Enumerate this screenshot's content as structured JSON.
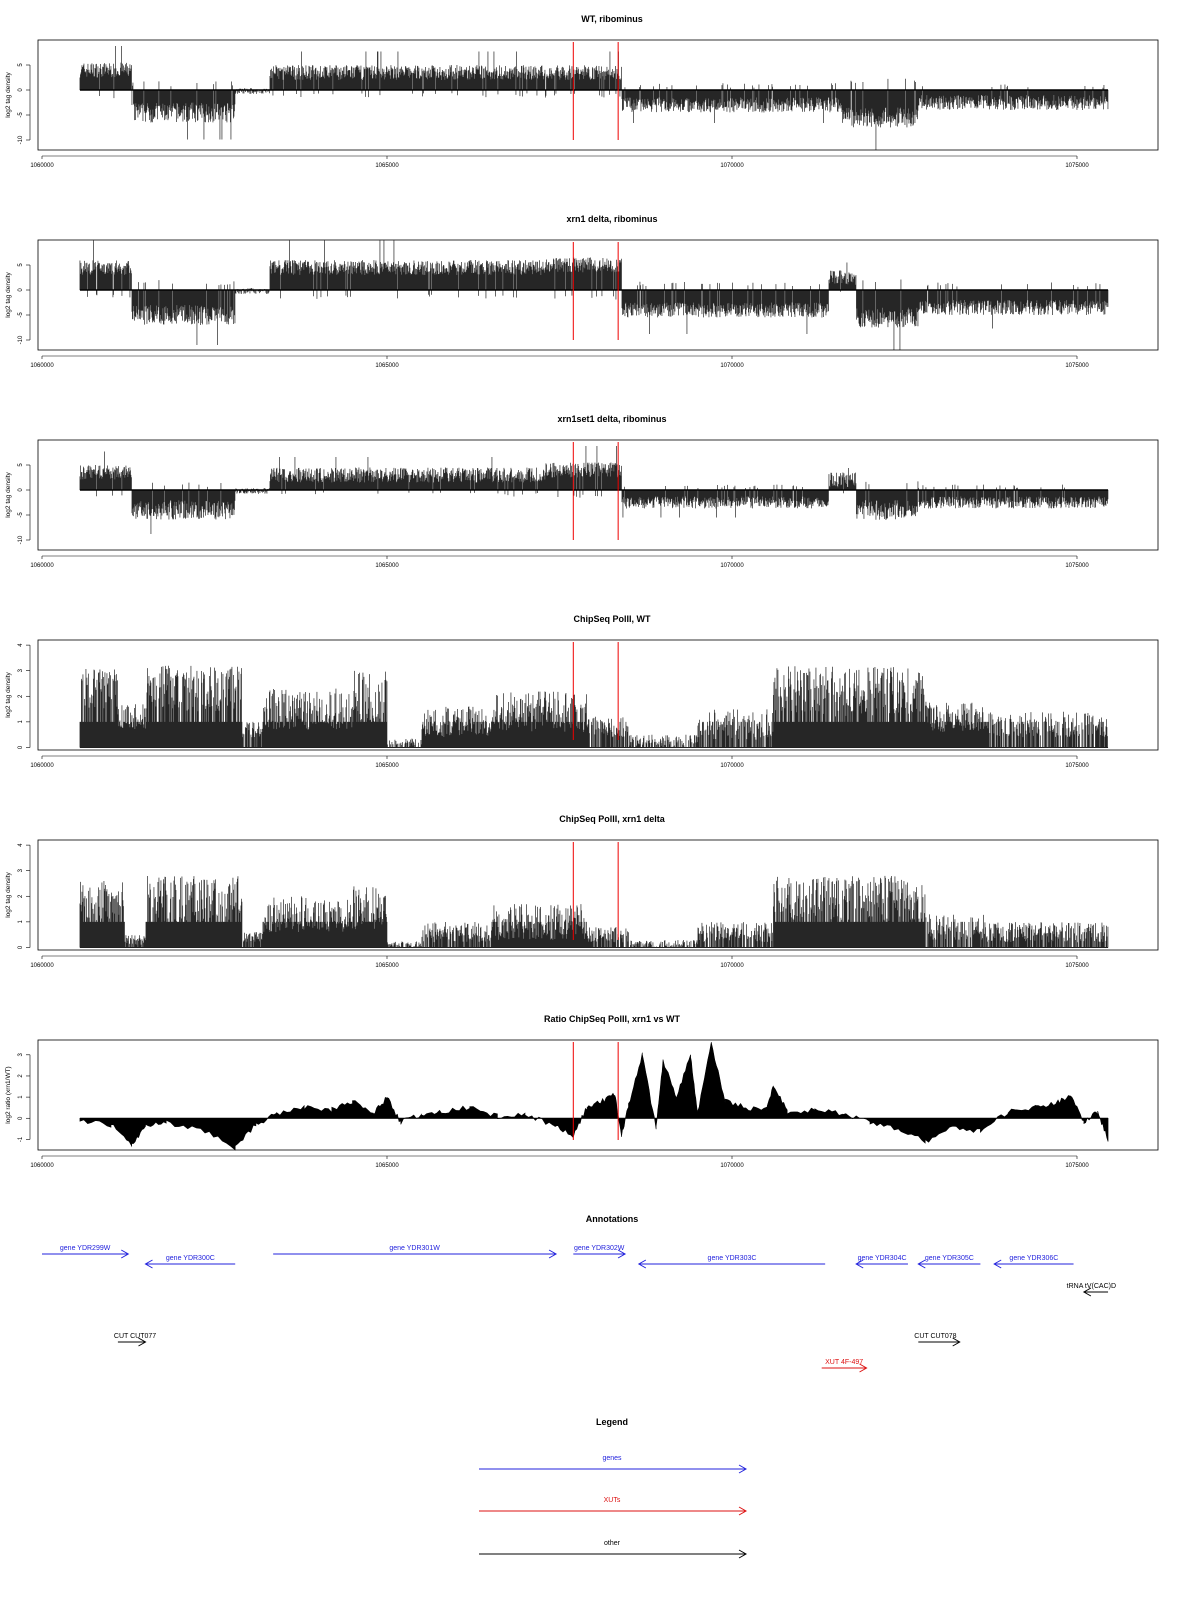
{
  "palette": {
    "gene": "#2222dd",
    "xut": "#dd1111",
    "other": "#000000",
    "marker": "#ee0000",
    "signal": "#000000"
  },
  "xaxis": {
    "range": [
      1060000,
      1075500
    ],
    "ticks": [
      1060000,
      1065000,
      1070000,
      1075000
    ],
    "tick_labels": [
      "1060000",
      "1065000",
      "1070000",
      "1075000"
    ]
  },
  "markers": [
    1067700,
    1068350
  ],
  "chart_data": [
    {
      "id": "wt-ribominus",
      "type": "bar",
      "title": "WT, ribominus",
      "ylabel": "log2 tag density",
      "ylim": [
        -12,
        10
      ],
      "yticks": [
        -10,
        -5,
        0,
        5
      ],
      "ytick_labels": [
        "-10",
        "-5",
        "0",
        "5"
      ],
      "signal_range": [
        1060550,
        1075450
      ],
      "segments": [
        {
          "from": 1060550,
          "to": 1061300,
          "level": 4,
          "amp": 1.5
        },
        {
          "from": 1061300,
          "to": 1062800,
          "level": -4.5,
          "amp": 2
        },
        {
          "from": 1062800,
          "to": 1063300,
          "level": -0.2,
          "amp": 0.6
        },
        {
          "from": 1063300,
          "to": 1067300,
          "level": 3.5,
          "amp": 1.5
        },
        {
          "from": 1067300,
          "to": 1068400,
          "level": 3.5,
          "amp": 1.5
        },
        {
          "from": 1068400,
          "to": 1071600,
          "level": -3,
          "amp": 1.5
        },
        {
          "from": 1071600,
          "to": 1072700,
          "level": -5.5,
          "amp": 2
        },
        {
          "from": 1072700,
          "to": 1075450,
          "level": -2.5,
          "amp": 1.5
        }
      ]
    },
    {
      "id": "xrn1-ribominus",
      "type": "bar",
      "title": "xrn1 delta, ribominus",
      "ylabel": "log2 tag density",
      "ylim": [
        -12,
        10
      ],
      "yticks": [
        -10,
        -5,
        0,
        5
      ],
      "ytick_labels": [
        "-10",
        "-5",
        "0",
        "5"
      ],
      "signal_range": [
        1060550,
        1075450
      ],
      "segments": [
        {
          "from": 1060550,
          "to": 1061300,
          "level": 4.5,
          "amp": 1.5
        },
        {
          "from": 1061300,
          "to": 1062800,
          "level": -5,
          "amp": 2
        },
        {
          "from": 1062800,
          "to": 1063300,
          "level": -0.2,
          "amp": 0.6
        },
        {
          "from": 1063300,
          "to": 1067300,
          "level": 4.5,
          "amp": 1.5
        },
        {
          "from": 1067300,
          "to": 1068400,
          "level": 5,
          "amp": 1.5
        },
        {
          "from": 1068400,
          "to": 1071400,
          "level": -4,
          "amp": 1.5
        },
        {
          "from": 1071400,
          "to": 1071800,
          "level": 2.5,
          "amp": 1.5
        },
        {
          "from": 1071800,
          "to": 1072700,
          "level": -5.5,
          "amp": 2
        },
        {
          "from": 1072700,
          "to": 1075450,
          "level": -3.5,
          "amp": 1.5
        }
      ]
    },
    {
      "id": "xrn1set1-ribominus",
      "type": "bar",
      "title": "xrn1set1 delta, ribominus",
      "ylabel": "log2 tag density",
      "ylim": [
        -12,
        10
      ],
      "yticks": [
        -10,
        -5,
        0,
        5
      ],
      "ytick_labels": [
        "-10",
        "-5",
        "0",
        "5"
      ],
      "signal_range": [
        1060550,
        1075450
      ],
      "segments": [
        {
          "from": 1060550,
          "to": 1061300,
          "level": 3.5,
          "amp": 1.5
        },
        {
          "from": 1061300,
          "to": 1062800,
          "level": -4,
          "amp": 2
        },
        {
          "from": 1062800,
          "to": 1063300,
          "level": -0.2,
          "amp": 0.6
        },
        {
          "from": 1063300,
          "to": 1067300,
          "level": 3,
          "amp": 1.5
        },
        {
          "from": 1067300,
          "to": 1068400,
          "level": 4,
          "amp": 1.5
        },
        {
          "from": 1068400,
          "to": 1071400,
          "level": -2.5,
          "amp": 1.2
        },
        {
          "from": 1071400,
          "to": 1071800,
          "level": 2,
          "amp": 1.5
        },
        {
          "from": 1071800,
          "to": 1072700,
          "level": -4,
          "amp": 2
        },
        {
          "from": 1072700,
          "to": 1075450,
          "level": -2.5,
          "amp": 1.2
        }
      ]
    },
    {
      "id": "chipseq-wt",
      "type": "bar",
      "title": "ChipSeq PolII, WT",
      "ylabel": "log2 tag density",
      "ylim": [
        -0.1,
        4.2
      ],
      "yticks": [
        0,
        1,
        2,
        3,
        4
      ],
      "ytick_labels": [
        "0",
        "1",
        "2",
        "3",
        "4"
      ],
      "signal_range": [
        1060550,
        1075450
      ],
      "segments": [
        {
          "from": 1060550,
          "to": 1061100,
          "level": 2.3,
          "amp": 0.8
        },
        {
          "from": 1061100,
          "to": 1061500,
          "level": 1.2,
          "amp": 0.5
        },
        {
          "from": 1061500,
          "to": 1062900,
          "level": 2.3,
          "amp": 0.9
        },
        {
          "from": 1062900,
          "to": 1063200,
          "level": 0.7,
          "amp": 0.3
        },
        {
          "from": 1063200,
          "to": 1064500,
          "level": 1.5,
          "amp": 0.8
        },
        {
          "from": 1064500,
          "to": 1065000,
          "level": 2,
          "amp": 1
        },
        {
          "from": 1065000,
          "to": 1065500,
          "level": 0.15,
          "amp": 0.2
        },
        {
          "from": 1065500,
          "to": 1066500,
          "level": 1,
          "amp": 0.6
        },
        {
          "from": 1066500,
          "to": 1067900,
          "level": 1.4,
          "amp": 0.8
        },
        {
          "from": 1067900,
          "to": 1068500,
          "level": 0.8,
          "amp": 0.4
        },
        {
          "from": 1068500,
          "to": 1069500,
          "level": 0.2,
          "amp": 0.3
        },
        {
          "from": 1069500,
          "to": 1070600,
          "level": 0.9,
          "amp": 0.6
        },
        {
          "from": 1070600,
          "to": 1072800,
          "level": 2.2,
          "amp": 1
        },
        {
          "from": 1072800,
          "to": 1073700,
          "level": 1.2,
          "amp": 0.6
        },
        {
          "from": 1073700,
          "to": 1075450,
          "level": 0.9,
          "amp": 0.5
        }
      ]
    },
    {
      "id": "chipseq-xrn1",
      "type": "bar",
      "title": "ChipSeq PolII, xrn1 delta",
      "ylabel": "log2 tag density",
      "ylim": [
        -0.1,
        4.2
      ],
      "yticks": [
        0,
        1,
        2,
        3,
        4
      ],
      "ytick_labels": [
        "0",
        "1",
        "2",
        "3",
        "4"
      ],
      "signal_range": [
        1060550,
        1075450
      ],
      "segments": [
        {
          "from": 1060550,
          "to": 1061200,
          "level": 1.8,
          "amp": 0.8
        },
        {
          "from": 1061200,
          "to": 1061500,
          "level": 0.3,
          "amp": 0.2
        },
        {
          "from": 1061500,
          "to": 1062900,
          "level": 1.9,
          "amp": 0.9
        },
        {
          "from": 1062900,
          "to": 1063200,
          "level": 0.4,
          "amp": 0.2
        },
        {
          "from": 1063200,
          "to": 1064500,
          "level": 1.3,
          "amp": 0.7
        },
        {
          "from": 1064500,
          "to": 1065000,
          "level": 1.5,
          "amp": 0.9
        },
        {
          "from": 1065000,
          "to": 1065500,
          "level": 0.1,
          "amp": 0.15
        },
        {
          "from": 1065500,
          "to": 1066500,
          "level": 0.6,
          "amp": 0.4
        },
        {
          "from": 1066500,
          "to": 1067900,
          "level": 1,
          "amp": 0.7
        },
        {
          "from": 1067900,
          "to": 1068500,
          "level": 0.5,
          "amp": 0.3
        },
        {
          "from": 1068500,
          "to": 1069500,
          "level": 0.1,
          "amp": 0.2
        },
        {
          "from": 1069500,
          "to": 1070600,
          "level": 0.6,
          "amp": 0.4
        },
        {
          "from": 1070600,
          "to": 1072800,
          "level": 1.9,
          "amp": 0.9
        },
        {
          "from": 1072800,
          "to": 1073700,
          "level": 0.8,
          "amp": 0.5
        },
        {
          "from": 1073700,
          "to": 1075450,
          "level": 0.6,
          "amp": 0.4
        }
      ]
    },
    {
      "id": "ratio-chipseq",
      "type": "area",
      "title": "Ratio ChipSeq PolII, xrn1 vs WT",
      "ylabel": "log2 ratio (xrn1/WT)",
      "ylim": [
        -1.5,
        3.7
      ],
      "yticks": [
        -1,
        0,
        1,
        2,
        3
      ],
      "ytick_labels": [
        "-1",
        "0",
        "1",
        "2",
        "3"
      ],
      "signal_range": [
        1060550,
        1075450
      ],
      "x": [
        1060550,
        1061000,
        1061300,
        1061500,
        1061800,
        1062300,
        1062800,
        1063100,
        1063400,
        1063800,
        1064200,
        1064500,
        1064800,
        1065000,
        1065200,
        1065500,
        1065800,
        1066200,
        1066600,
        1067000,
        1067400,
        1067700,
        1067900,
        1068100,
        1068300,
        1068400,
        1068500,
        1068700,
        1068900,
        1069000,
        1069200,
        1069400,
        1069500,
        1069700,
        1069900,
        1070200,
        1070500,
        1070600,
        1070800,
        1071200,
        1071600,
        1072000,
        1072400,
        1072800,
        1073200,
        1073600,
        1074000,
        1074400,
        1074700,
        1074900,
        1075100,
        1075300,
        1075450
      ],
      "y": [
        -0.1,
        -0.3,
        -1.2,
        -0.4,
        -0.2,
        -0.5,
        -1.4,
        -0.3,
        0.2,
        0.5,
        0.4,
        0.8,
        0.2,
        1.0,
        -0.2,
        0.2,
        0.3,
        0.5,
        0.1,
        0.2,
        -0.3,
        -0.8,
        0.5,
        0.8,
        1.1,
        -0.8,
        0.6,
        3.0,
        -0.5,
        2.7,
        1.0,
        3.0,
        0.2,
        3.5,
        0.8,
        0.5,
        0.4,
        1.6,
        0.3,
        0.4,
        0.2,
        -0.2,
        -0.5,
        -1.1,
        -0.4,
        -0.6,
        0.3,
        0.5,
        0.7,
        1.1,
        -0.2,
        0.3,
        -1.0
      ]
    }
  ],
  "annotations": {
    "title": "Annotations",
    "features": [
      {
        "label": "gene YDR299W",
        "kind": "gene",
        "start": 1060000,
        "end": 1061250,
        "strand": "+",
        "row": 0
      },
      {
        "label": "gene YDR300C",
        "kind": "gene",
        "start": 1061500,
        "end": 1062800,
        "strand": "-",
        "row": 1
      },
      {
        "label": "gene YDR301W",
        "kind": "gene",
        "start": 1063350,
        "end": 1067450,
        "strand": "+",
        "row": 0
      },
      {
        "label": "gene YDR302W",
        "kind": "gene",
        "start": 1067700,
        "end": 1068450,
        "strand": "+",
        "row": 0
      },
      {
        "label": "gene YDR303C",
        "kind": "gene",
        "start": 1068650,
        "end": 1071350,
        "strand": "-",
        "row": 1
      },
      {
        "label": "gene YDR304C",
        "kind": "gene",
        "start": 1071800,
        "end": 1072550,
        "strand": "-",
        "row": 1
      },
      {
        "label": "gene YDR305C",
        "kind": "gene",
        "start": 1072700,
        "end": 1073600,
        "strand": "-",
        "row": 1
      },
      {
        "label": "gene YDR306C",
        "kind": "gene",
        "start": 1073800,
        "end": 1074950,
        "strand": "-",
        "row": 1
      },
      {
        "label": "tRNA tV(CAC)D",
        "kind": "other",
        "start": 1075100,
        "end": 1075450,
        "strand": "-",
        "row": 2
      },
      {
        "label": "CUT CUT077",
        "kind": "other",
        "start": 1061100,
        "end": 1061500,
        "strand": "+",
        "row": 3
      },
      {
        "label": "CUT CUT078",
        "kind": "other",
        "start": 1072700,
        "end": 1073300,
        "strand": "+",
        "row": 3
      },
      {
        "label": "XUT 4F-497",
        "kind": "xut",
        "start": 1071300,
        "end": 1071950,
        "strand": "+",
        "row": 4
      }
    ]
  },
  "legend": {
    "title": "Legend",
    "items": [
      {
        "label": "genes",
        "kind": "gene"
      },
      {
        "label": "XUTs",
        "kind": "xut"
      },
      {
        "label": "other",
        "kind": "other"
      }
    ]
  }
}
